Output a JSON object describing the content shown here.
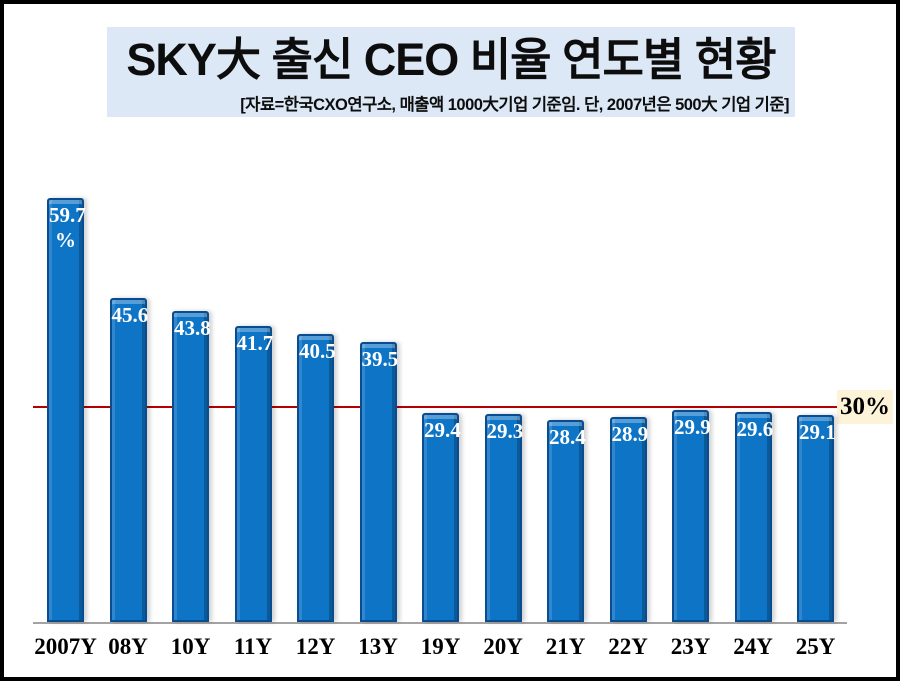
{
  "chart_data": {
    "type": "bar",
    "title": "SKY大 출신 CEO 비율 연도별 현황",
    "subtitle": "[자료=한국CXO연구소, 매출액 1000大기업 기준임. 단, 2007년은 500大 기업 기준]",
    "unit": "%",
    "categories": [
      "2007Y",
      "08Y",
      "10Y",
      "11Y",
      "12Y",
      "13Y",
      "19Y",
      "20Y",
      "21Y",
      "22Y",
      "23Y",
      "24Y",
      "25Y"
    ],
    "values": [
      59.7,
      45.6,
      43.8,
      41.7,
      40.5,
      39.5,
      29.4,
      29.3,
      28.4,
      28.9,
      29.9,
      29.6,
      29.1
    ],
    "bar_labels": [
      "59.7\n%",
      "45.6",
      "43.8",
      "41.7",
      "40.5",
      "39.5",
      "29.4",
      "29.3",
      "28.4",
      "28.9",
      "29.9",
      "29.6",
      "29.1"
    ],
    "reference_line": {
      "value": 30,
      "label": "30%"
    },
    "ylim": [
      0,
      65
    ],
    "grid": false,
    "legend": "none",
    "colors": {
      "bar": "#0e74c6",
      "bar_border": "#0a4c90",
      "value_text": "#ffffff",
      "reference_line": "#b40000",
      "reference_label_bg": "#fcf3d9",
      "title_bg": "#dce8f5",
      "axis_line": "#a3a3a3",
      "text": "#000000"
    }
  }
}
